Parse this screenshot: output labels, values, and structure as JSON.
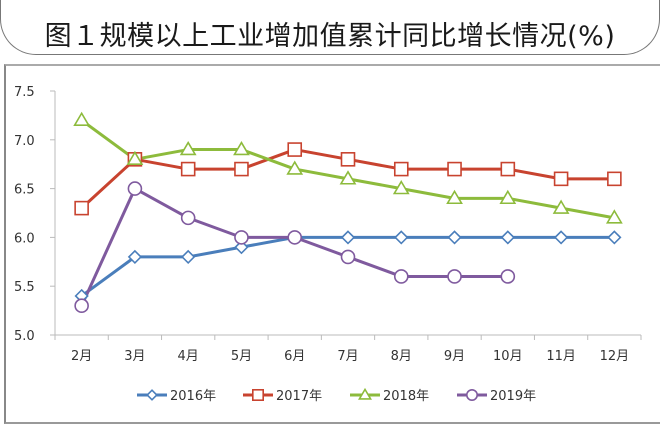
{
  "chart_data": {
    "type": "line",
    "title": "图１规模以上工业增加值累计同比增长情况(%)",
    "xlabel": "",
    "ylabel": "",
    "categories": [
      "2月",
      "3月",
      "4月",
      "5月",
      "6月",
      "7月",
      "8月",
      "9月",
      "10月",
      "11月",
      "12月"
    ],
    "ylim": [
      5.0,
      7.5
    ],
    "yticks": [
      "5.0",
      "5.5",
      "6.0",
      "6.5",
      "7.0",
      "7.5"
    ],
    "ytick_values": [
      5.0,
      5.5,
      6.0,
      6.5,
      7.0,
      7.5
    ],
    "grid": false,
    "legend_position": "bottom",
    "series": [
      {
        "name": "2016年",
        "color": "#4a7ebb",
        "marker": "diamond",
        "values": [
          5.4,
          5.8,
          5.8,
          5.9,
          6.0,
          6.0,
          6.0,
          6.0,
          6.0,
          6.0,
          6.0
        ]
      },
      {
        "name": "2017年",
        "color": "#c8432f",
        "marker": "square",
        "values": [
          6.3,
          6.8,
          6.7,
          6.7,
          6.9,
          6.8,
          6.7,
          6.7,
          6.7,
          6.6,
          6.6
        ]
      },
      {
        "name": "2018年",
        "color": "#8dbb3c",
        "marker": "triangle",
        "values": [
          7.2,
          6.8,
          6.9,
          6.9,
          6.7,
          6.6,
          6.5,
          6.4,
          6.4,
          6.3,
          6.2
        ]
      },
      {
        "name": "2019年",
        "color": "#7f5a9e",
        "marker": "circle",
        "values": [
          5.3,
          6.5,
          6.2,
          6.0,
          6.0,
          5.8,
          5.6,
          5.6,
          5.6,
          null,
          null
        ]
      }
    ]
  }
}
